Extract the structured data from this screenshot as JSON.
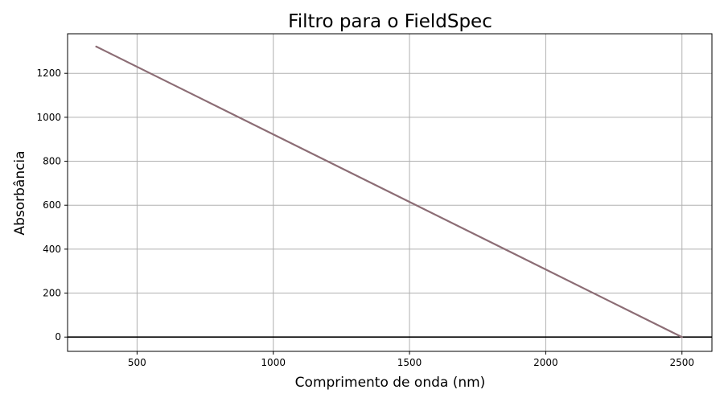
{
  "chart_data": {
    "type": "line",
    "title": "Filtro para o FieldSpec",
    "xlabel": "Comprimento de onda (nm)",
    "ylabel": "Absorbância",
    "xlim": [
      245,
      2610
    ],
    "ylim": [
      -65,
      1380
    ],
    "xticks": [
      500,
      1000,
      1500,
      2000,
      2500
    ],
    "yticks": [
      0,
      200,
      400,
      600,
      800,
      1000,
      1200
    ],
    "grid": true,
    "reference_line": {
      "y": 0,
      "color": "#000000"
    },
    "series": [
      {
        "color": "#8c6d75",
        "x": [
          350,
          2500
        ],
        "y": [
          1322,
          0
        ]
      }
    ]
  }
}
